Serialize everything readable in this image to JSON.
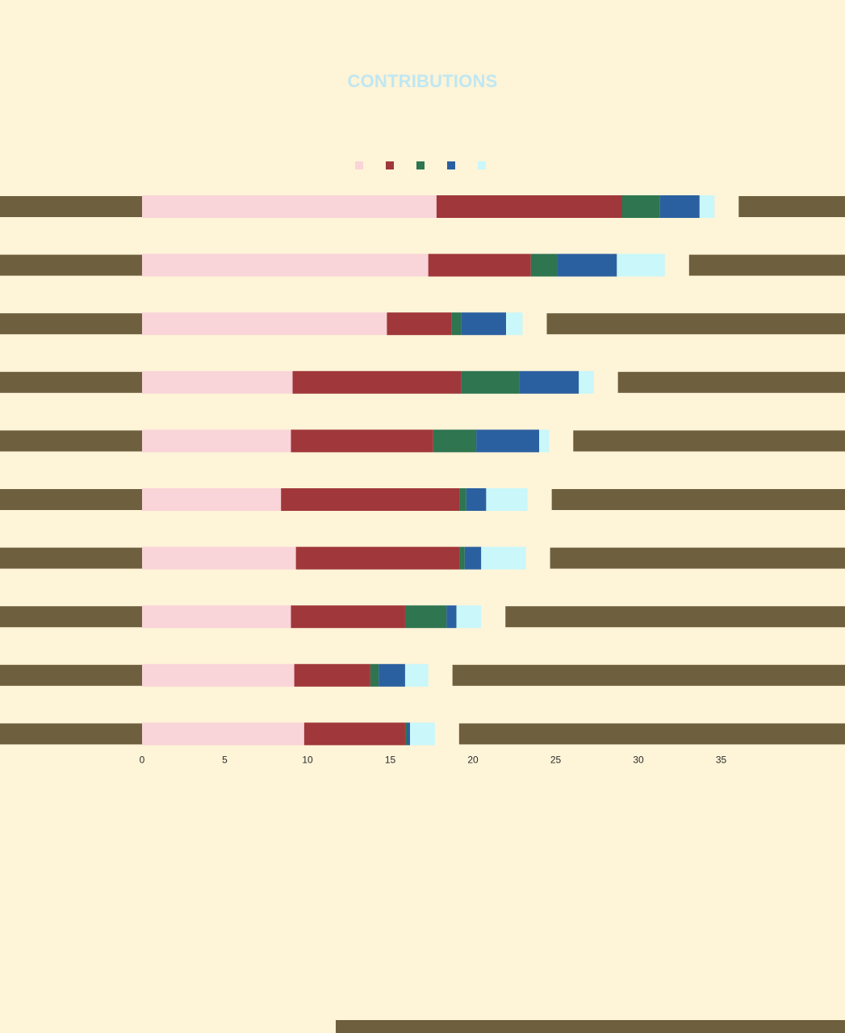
{
  "colors": {
    "background": "#FEF4D8",
    "pink": "#F9D4D8",
    "red": "#A0373B",
    "green": "#2E7550",
    "blue": "#2B60A0",
    "cyan": "#C9F7FA",
    "olive": "#6E5F3E",
    "highlight": "#BFE7F2"
  },
  "title": {
    "prefix": "",
    "highlight": "CONTRIBUTIONS",
    "suffix": ""
  },
  "subtitle": {
    "main": "",
    "note": ""
  },
  "legend": [
    {
      "label": "",
      "color": "#F9D4D8"
    },
    {
      "label": "",
      "color": "#A0373B"
    },
    {
      "label": "",
      "color": "#2E7550"
    },
    {
      "label": "",
      "color": "#2B60A0"
    },
    {
      "label": "",
      "color": "#C9F7FA"
    }
  ],
  "chart_data": {
    "type": "bar",
    "orientation": "horizontal",
    "stacked": true,
    "categories": [
      "",
      "",
      "",
      "",
      "",
      "",
      "",
      "",
      "",
      ""
    ],
    "series": [
      {
        "color": "#F9D4D8",
        "values": [
          17.8,
          17.3,
          14.8,
          9.1,
          9.0,
          8.4,
          9.3,
          9.0,
          9.2,
          9.8
        ]
      },
      {
        "color": "#A0373B",
        "values": [
          11.2,
          6.2,
          3.9,
          10.2,
          8.6,
          10.8,
          9.9,
          6.9,
          4.6,
          6.1
        ]
      },
      {
        "color": "#2E7550",
        "values": [
          2.3,
          1.6,
          0.6,
          3.5,
          2.6,
          0.4,
          0.3,
          2.5,
          0.5,
          0.1
        ]
      },
      {
        "color": "#2B60A0",
        "values": [
          2.4,
          3.6,
          2.7,
          3.6,
          3.8,
          1.2,
          1.0,
          0.6,
          1.6,
          0.2
        ]
      },
      {
        "color": "#C9F7FA",
        "values": [
          0.9,
          2.9,
          1.0,
          0.9,
          0.6,
          2.5,
          2.7,
          1.5,
          1.4,
          1.5
        ]
      }
    ],
    "xlim": [
      0,
      45
    ],
    "x_ticks": [
      0,
      5,
      10,
      15,
      20,
      25,
      30,
      35
    ],
    "x_tick_labels": [
      "0",
      "5",
      "10",
      "15",
      "20",
      "25",
      "30",
      "35"
    ],
    "grid": false,
    "legend_position": "top"
  }
}
